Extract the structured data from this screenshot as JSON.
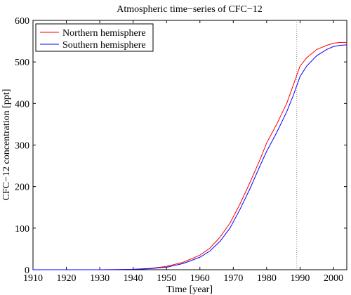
{
  "chart_data": {
    "type": "line",
    "title": "Atmospheric time−series of CFC−12",
    "xlabel": "Time [year]",
    "ylabel": "CFC−12 concentration [ppt]",
    "xlim": [
      1910,
      2004
    ],
    "ylim": [
      0,
      600
    ],
    "xticks": [
      1910,
      1920,
      1930,
      1940,
      1950,
      1960,
      1970,
      1980,
      1990,
      2000
    ],
    "yticks": [
      0,
      100,
      200,
      300,
      400,
      500,
      600
    ],
    "grid": false,
    "legend_position": "top-left",
    "reference_line": {
      "x": 1989,
      "style": "dotted"
    },
    "series": [
      {
        "name": "Northern hemisphere",
        "color": "#ff0000",
        "x": [
          1910,
          1930,
          1935,
          1940,
          1945,
          1950,
          1955,
          1960,
          1963,
          1966,
          1969,
          1972,
          1975,
          1978,
          1980,
          1983,
          1986,
          1988,
          1990,
          1992,
          1995,
          1998,
          2000,
          2002,
          2004
        ],
        "y": [
          0,
          0,
          0.5,
          1,
          3,
          8,
          18,
          35,
          52,
          78,
          112,
          158,
          210,
          265,
          305,
          350,
          400,
          445,
          490,
          510,
          530,
          540,
          545,
          547,
          547
        ]
      },
      {
        "name": "Southern hemisphere",
        "color": "#0000ff",
        "x": [
          1910,
          1930,
          1935,
          1940,
          1945,
          1950,
          1955,
          1960,
          1963,
          1966,
          1969,
          1972,
          1975,
          1978,
          1980,
          1983,
          1986,
          1988,
          1990,
          1992,
          1995,
          1998,
          2000,
          2002,
          2004
        ],
        "y": [
          0,
          0,
          0.3,
          0.8,
          2.5,
          6,
          15,
          30,
          45,
          68,
          100,
          145,
          195,
          250,
          285,
          330,
          380,
          420,
          465,
          490,
          515,
          530,
          537,
          540,
          541
        ]
      }
    ]
  }
}
